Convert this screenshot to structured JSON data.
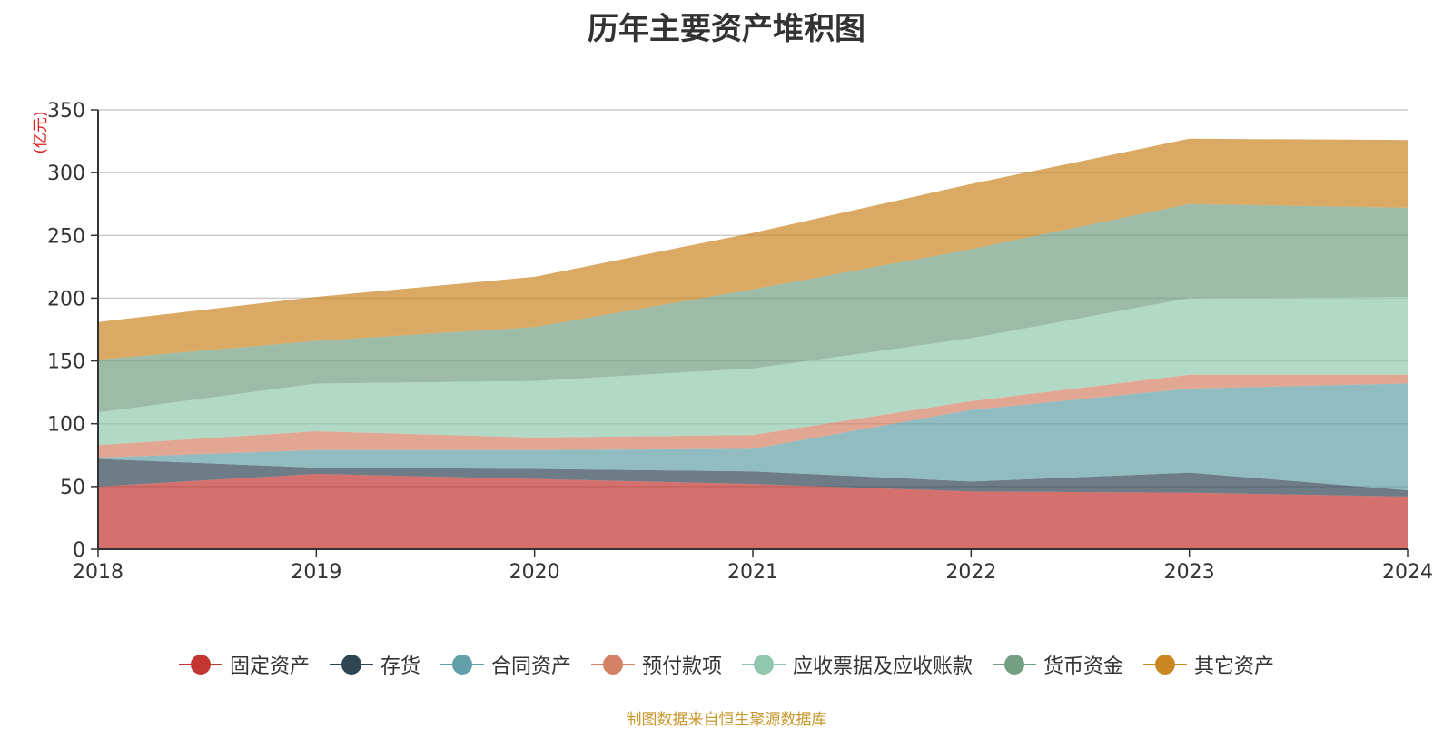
{
  "chart_data": {
    "type": "area",
    "stacked": true,
    "title": "历年主要资产堆积图",
    "ylabel": "(亿元)",
    "xlabel": "",
    "ylim": [
      0,
      350
    ],
    "yticks": [
      0,
      50,
      100,
      150,
      200,
      250,
      300,
      350
    ],
    "categories": [
      "2018",
      "2019",
      "2020",
      "2021",
      "2022",
      "2023",
      "2024"
    ],
    "series": [
      {
        "name": "固定资产",
        "color": "#c23531",
        "values": [
          50,
          60,
          56,
          52,
          46,
          45,
          42
        ]
      },
      {
        "name": "存货",
        "color": "#2f4554",
        "values": [
          22,
          5,
          8,
          10,
          8,
          16,
          5
        ]
      },
      {
        "name": "合同资产",
        "color": "#61a0a8",
        "values": [
          1,
          14,
          15,
          18,
          57,
          67,
          85
        ]
      },
      {
        "name": "预付款项",
        "color": "#d48265",
        "values": [
          10,
          15,
          10,
          11,
          7,
          11,
          7
        ]
      },
      {
        "name": "应收票据及应收账款",
        "color": "#91c7ae",
        "values": [
          26,
          38,
          45,
          53,
          50,
          61,
          62
        ]
      },
      {
        "name": "货币资金",
        "color": "#749f83",
        "values": [
          42,
          34,
          43,
          63,
          71,
          75,
          71
        ]
      },
      {
        "name": "其它资产",
        "color": "#ca8622",
        "values": [
          30,
          35,
          40,
          45,
          52,
          52,
          54
        ]
      }
    ]
  },
  "footnote": "制图数据来自恒生聚源数据库"
}
